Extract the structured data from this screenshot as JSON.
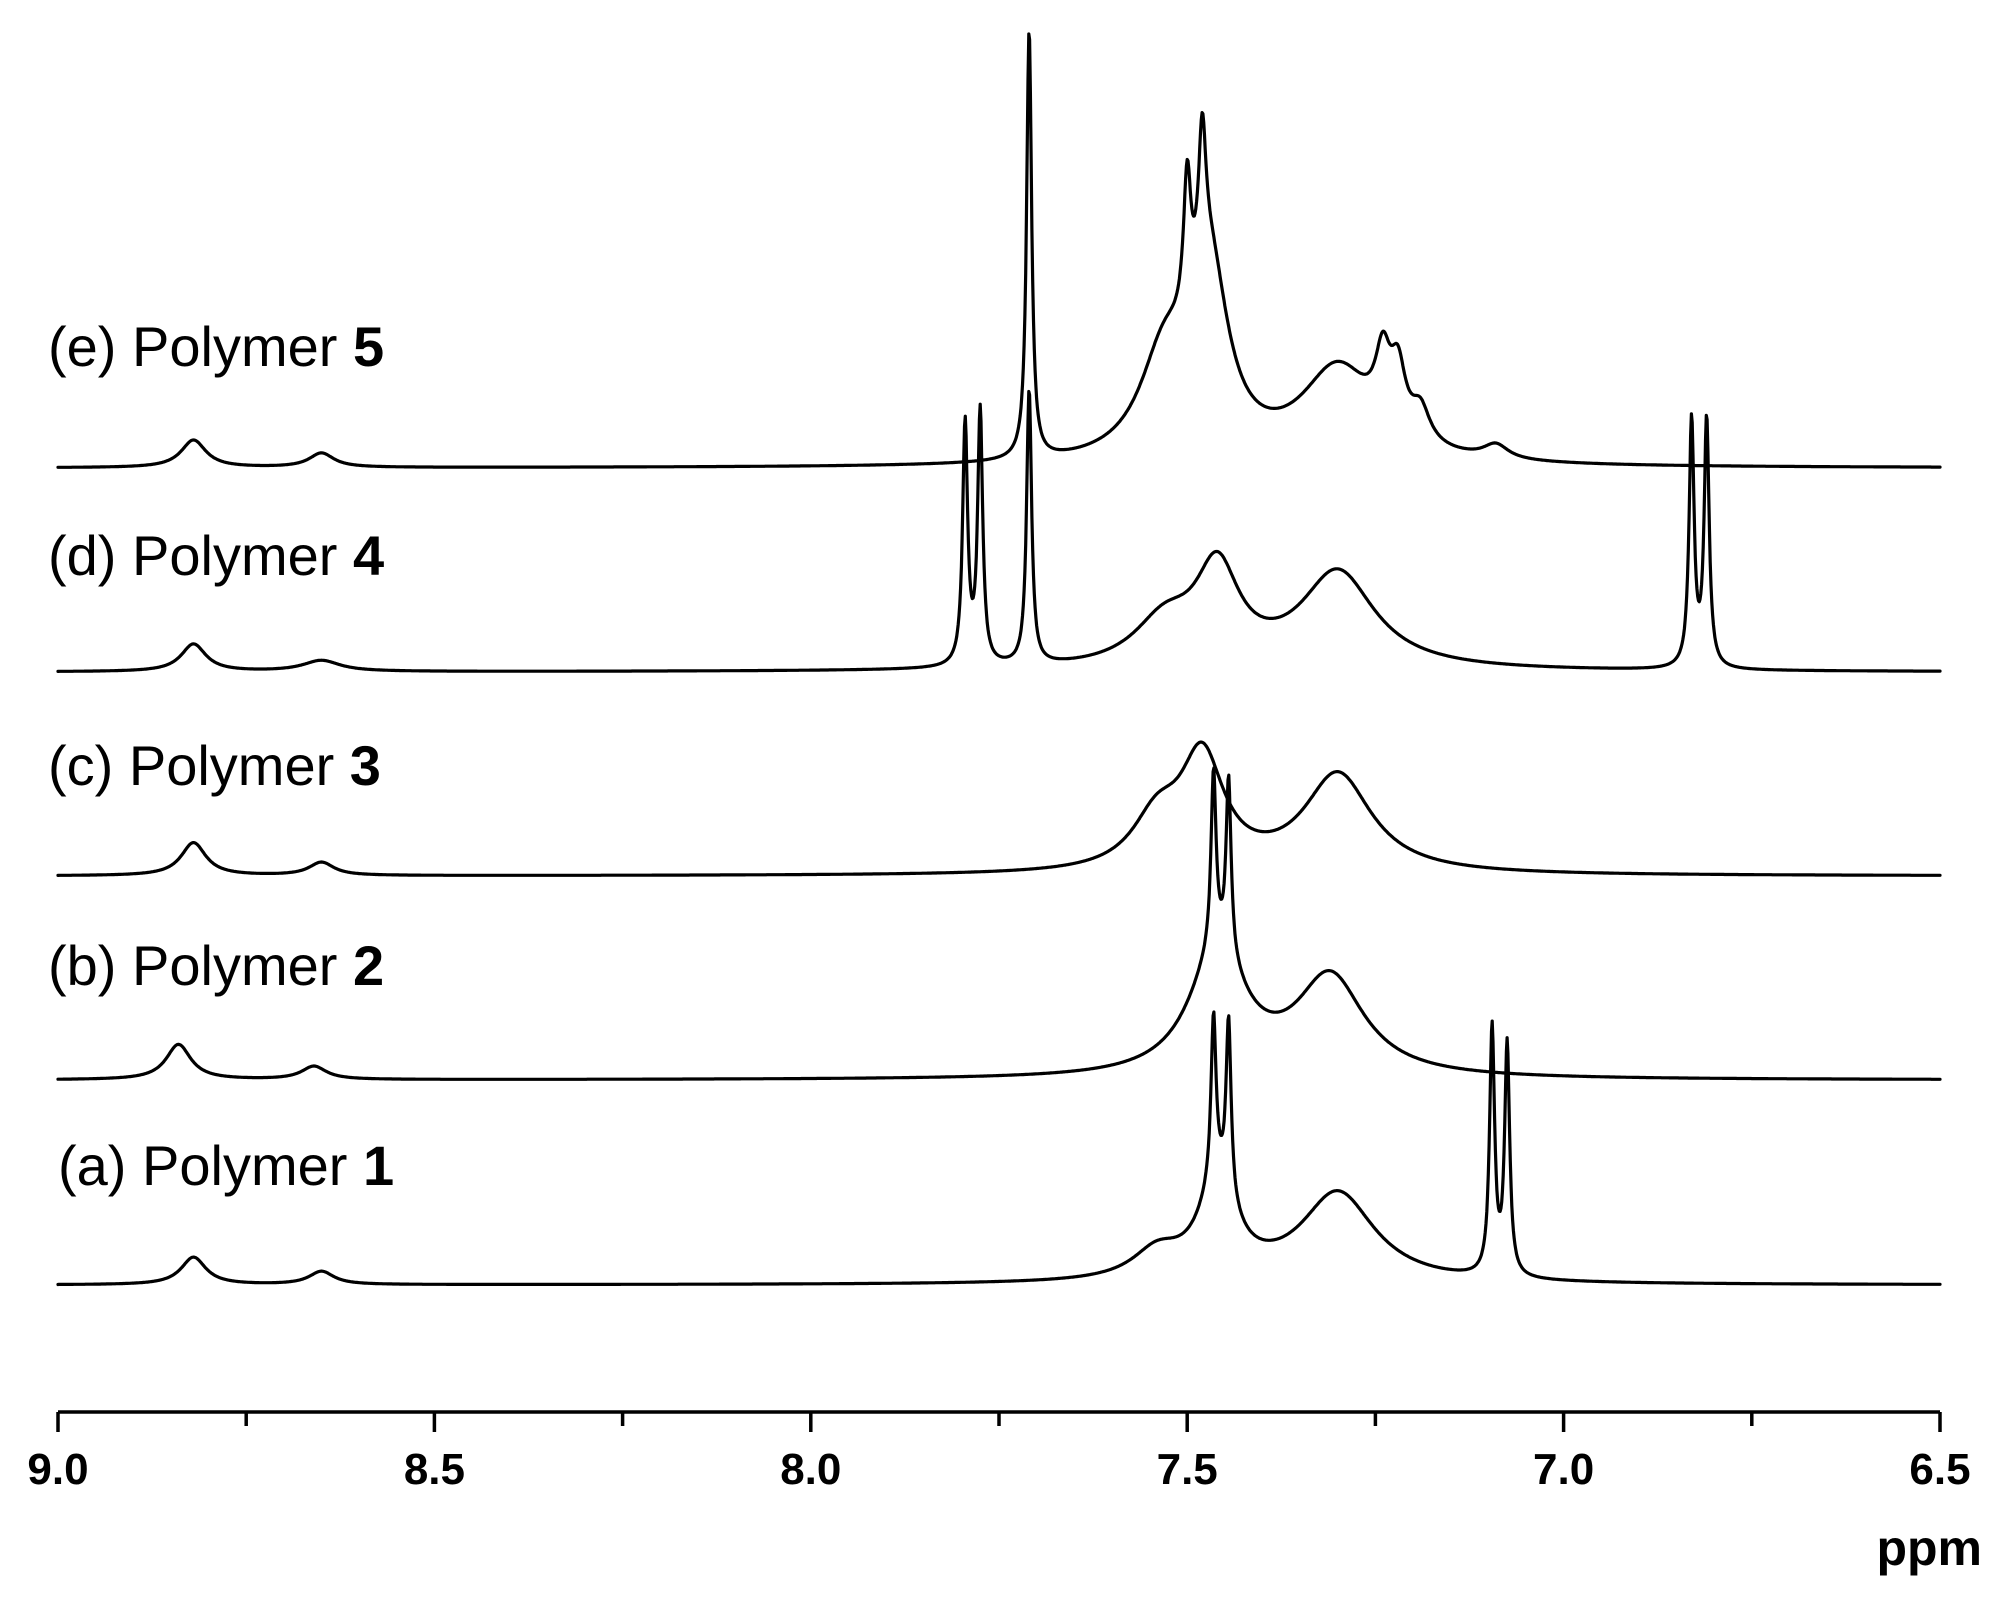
{
  "chart_data": {
    "type": "line",
    "title": "",
    "xlabel": "ppm",
    "ylabel": "",
    "xlim": [
      9.0,
      6.5
    ],
    "x_reversed": true,
    "x_ticks": [
      "9.0",
      "8.5",
      "8.0",
      "7.5",
      "7.0",
      "6.5"
    ],
    "grid": false,
    "legend": "none",
    "series": [
      {
        "name": "(e) Polymer 5",
        "prefix": "(e) Polymer ",
        "number": "5",
        "peaks": [
          {
            "x": 8.82,
            "h": 0.25,
            "w": 0.02
          },
          {
            "x": 8.65,
            "h": 0.13,
            "w": 0.02
          },
          {
            "x": 7.71,
            "h": 3.9,
            "w": 0.004
          },
          {
            "x": 7.53,
            "h": 0.9,
            "w": 0.04
          },
          {
            "x": 7.47,
            "h": 1.6,
            "w": 0.03
          },
          {
            "x": 7.5,
            "h": 1.25,
            "w": 0.006
          },
          {
            "x": 7.48,
            "h": 1.25,
            "w": 0.006
          },
          {
            "x": 7.3,
            "h": 0.85,
            "w": 0.06
          },
          {
            "x": 7.24,
            "h": 0.6,
            "w": 0.012
          },
          {
            "x": 7.22,
            "h": 0.55,
            "w": 0.012
          },
          {
            "x": 7.19,
            "h": 0.3,
            "w": 0.015
          },
          {
            "x": 7.09,
            "h": 0.13,
            "w": 0.02
          }
        ]
      },
      {
        "name": "(d) Polymer 4",
        "prefix": "(d) Polymer ",
        "number": "4",
        "peaks": [
          {
            "x": 8.82,
            "h": 0.25,
            "w": 0.02
          },
          {
            "x": 8.65,
            "h": 0.1,
            "w": 0.03
          },
          {
            "x": 7.795,
            "h": 2.2,
            "w": 0.004
          },
          {
            "x": 7.775,
            "h": 2.3,
            "w": 0.004
          },
          {
            "x": 7.71,
            "h": 2.5,
            "w": 0.004
          },
          {
            "x": 7.53,
            "h": 0.4,
            "w": 0.05
          },
          {
            "x": 7.46,
            "h": 0.85,
            "w": 0.035
          },
          {
            "x": 7.3,
            "h": 0.88,
            "w": 0.06
          },
          {
            "x": 6.83,
            "h": 2.25,
            "w": 0.004
          },
          {
            "x": 6.81,
            "h": 2.25,
            "w": 0.004
          }
        ]
      },
      {
        "name": "(c) Polymer 3",
        "prefix": "(c) Polymer ",
        "number": "3",
        "peaks": [
          {
            "x": 8.82,
            "h": 0.3,
            "w": 0.02
          },
          {
            "x": 8.65,
            "h": 0.12,
            "w": 0.02
          },
          {
            "x": 7.54,
            "h": 0.45,
            "w": 0.04
          },
          {
            "x": 7.48,
            "h": 1.0,
            "w": 0.035
          },
          {
            "x": 7.3,
            "h": 0.9,
            "w": 0.055
          }
        ]
      },
      {
        "name": "(b) Polymer 2",
        "prefix": "(b) Polymer ",
        "number": "2",
        "peaks": [
          {
            "x": 8.84,
            "h": 0.32,
            "w": 0.02
          },
          {
            "x": 8.66,
            "h": 0.12,
            "w": 0.02
          },
          {
            "x": 7.46,
            "h": 1.1,
            "w": 0.045
          },
          {
            "x": 7.465,
            "h": 1.6,
            "w": 0.004
          },
          {
            "x": 7.445,
            "h": 1.6,
            "w": 0.004
          },
          {
            "x": 7.31,
            "h": 0.9,
            "w": 0.055
          }
        ]
      },
      {
        "name": "(a) Polymer 1",
        "prefix": "(a) Polymer ",
        "number": "1",
        "peaks": [
          {
            "x": 8.82,
            "h": 0.25,
            "w": 0.02
          },
          {
            "x": 8.65,
            "h": 0.12,
            "w": 0.02
          },
          {
            "x": 7.54,
            "h": 0.25,
            "w": 0.04
          },
          {
            "x": 7.46,
            "h": 0.8,
            "w": 0.03
          },
          {
            "x": 7.465,
            "h": 1.5,
            "w": 0.004
          },
          {
            "x": 7.445,
            "h": 1.6,
            "w": 0.004
          },
          {
            "x": 7.3,
            "h": 0.82,
            "w": 0.06
          },
          {
            "x": 7.095,
            "h": 2.25,
            "w": 0.004
          },
          {
            "x": 7.075,
            "h": 2.1,
            "w": 0.004
          }
        ]
      }
    ]
  }
}
